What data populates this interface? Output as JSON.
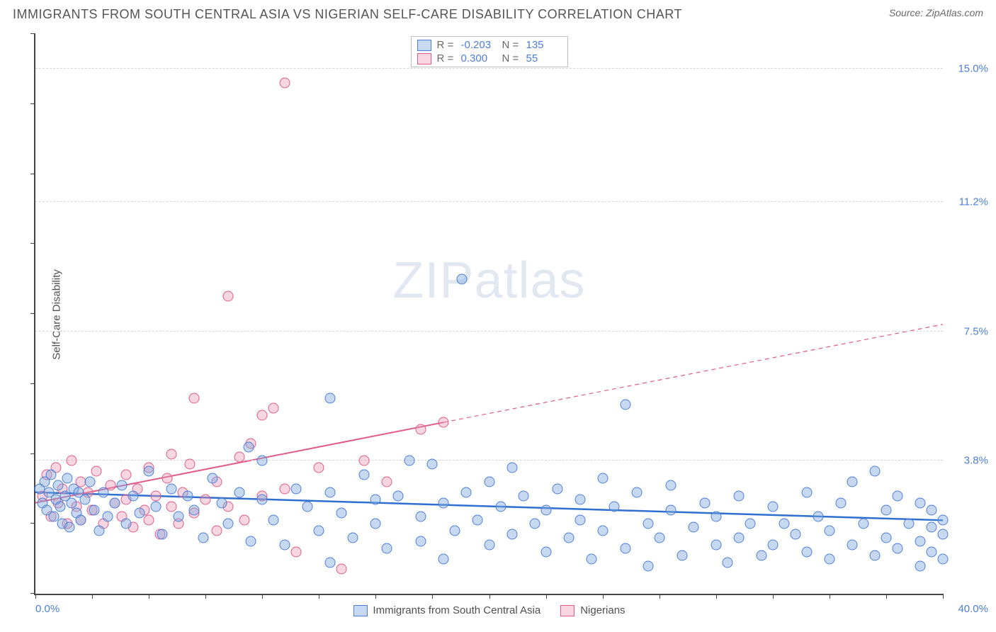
{
  "title": "IMMIGRANTS FROM SOUTH CENTRAL ASIA VS NIGERIAN SELF-CARE DISABILITY CORRELATION CHART",
  "source_label": "Source: ZipAtlas.com",
  "watermark": {
    "bold": "ZIP",
    "light": "atlas"
  },
  "chart": {
    "type": "scatter",
    "background_color": "#ffffff",
    "grid_color": "#d7d7d7",
    "axis_color": "#444444",
    "axis_label_color": "#4d7fd8",
    "y_axis_title": "Self-Care Disability",
    "y_axis_title_color": "#505050",
    "xlim": [
      0,
      40
    ],
    "ylim": [
      0,
      16
    ],
    "x_ticks": [
      0,
      2.5,
      5,
      7.5,
      10,
      12.5,
      15,
      17.5,
      20,
      22.5,
      25,
      27.5,
      30,
      32.5,
      35,
      37.5,
      40
    ],
    "y_ticks": [
      0,
      2,
      4,
      6,
      8,
      10,
      12,
      14,
      16
    ],
    "x_min_label": "0.0%",
    "x_max_label": "40.0%",
    "y_grid": [
      {
        "v": 3.8,
        "label": "3.8%"
      },
      {
        "v": 7.5,
        "label": "7.5%"
      },
      {
        "v": 11.2,
        "label": "11.2%"
      },
      {
        "v": 15.0,
        "label": "15.0%"
      }
    ],
    "marker_radius": 7.5,
    "series": [
      {
        "name": "Immigrants from South Central Asia",
        "short": "sca",
        "fill": "rgba(128,170,225,0.45)",
        "stroke": "#4d7fd8",
        "trend_color": "#2f6fd0",
        "trend_width": 2.5,
        "R": "-0.203",
        "N": "135",
        "trend": {
          "x1": 0,
          "y1": 2.9,
          "x2": 40,
          "y2": 2.1
        },
        "points": [
          [
            0.2,
            3.0
          ],
          [
            0.3,
            2.6
          ],
          [
            0.4,
            3.2
          ],
          [
            0.5,
            2.4
          ],
          [
            0.6,
            2.9
          ],
          [
            0.7,
            3.4
          ],
          [
            0.8,
            2.2
          ],
          [
            0.9,
            2.7
          ],
          [
            1.0,
            3.1
          ],
          [
            1.1,
            2.5
          ],
          [
            1.2,
            2.0
          ],
          [
            1.3,
            2.8
          ],
          [
            1.4,
            3.3
          ],
          [
            1.5,
            1.9
          ],
          [
            1.6,
            2.6
          ],
          [
            1.7,
            3.0
          ],
          [
            1.8,
            2.3
          ],
          [
            1.9,
            2.9
          ],
          [
            2.0,
            2.1
          ],
          [
            2.2,
            2.7
          ],
          [
            2.4,
            3.2
          ],
          [
            2.6,
            2.4
          ],
          [
            2.8,
            1.8
          ],
          [
            3.0,
            2.9
          ],
          [
            3.2,
            2.2
          ],
          [
            3.5,
            2.6
          ],
          [
            3.8,
            3.1
          ],
          [
            4.0,
            2.0
          ],
          [
            4.3,
            2.8
          ],
          [
            4.6,
            2.3
          ],
          [
            5.0,
            3.5
          ],
          [
            5.3,
            2.5
          ],
          [
            5.6,
            1.7
          ],
          [
            6.0,
            3.0
          ],
          [
            6.3,
            2.2
          ],
          [
            6.7,
            2.8
          ],
          [
            7.0,
            2.4
          ],
          [
            7.4,
            1.6
          ],
          [
            7.8,
            3.3
          ],
          [
            8.2,
            2.6
          ],
          [
            8.5,
            2.0
          ],
          [
            9.0,
            2.9
          ],
          [
            9.4,
            4.2
          ],
          [
            9.5,
            1.5
          ],
          [
            10.0,
            2.7
          ],
          [
            10.0,
            3.8
          ],
          [
            10.5,
            2.1
          ],
          [
            11.0,
            1.4
          ],
          [
            11.5,
            3.0
          ],
          [
            12.0,
            2.5
          ],
          [
            12.5,
            1.8
          ],
          [
            13.0,
            2.9
          ],
          [
            13.0,
            5.6
          ],
          [
            13.0,
            0.9
          ],
          [
            13.5,
            2.3
          ],
          [
            14.0,
            1.6
          ],
          [
            14.5,
            3.4
          ],
          [
            15.0,
            2.7
          ],
          [
            15.0,
            2.0
          ],
          [
            15.5,
            1.3
          ],
          [
            16.0,
            2.8
          ],
          [
            16.5,
            3.8
          ],
          [
            17.0,
            2.2
          ],
          [
            17.0,
            1.5
          ],
          [
            17.5,
            3.7
          ],
          [
            18.0,
            2.6
          ],
          [
            18.0,
            1.0
          ],
          [
            18.5,
            1.8
          ],
          [
            18.8,
            9.0
          ],
          [
            19.0,
            2.9
          ],
          [
            19.5,
            2.1
          ],
          [
            20.0,
            1.4
          ],
          [
            20.0,
            3.2
          ],
          [
            20.5,
            2.5
          ],
          [
            21.0,
            1.7
          ],
          [
            21.0,
            3.6
          ],
          [
            21.5,
            2.8
          ],
          [
            22.0,
            2.0
          ],
          [
            22.5,
            1.2
          ],
          [
            22.5,
            2.4
          ],
          [
            23.0,
            3.0
          ],
          [
            23.5,
            1.6
          ],
          [
            24.0,
            2.7
          ],
          [
            24.0,
            2.1
          ],
          [
            24.5,
            1.0
          ],
          [
            25.0,
            3.3
          ],
          [
            25.0,
            1.8
          ],
          [
            25.5,
            2.5
          ],
          [
            26.0,
            1.3
          ],
          [
            26.0,
            5.4
          ],
          [
            26.5,
            2.9
          ],
          [
            27.0,
            2.0
          ],
          [
            27.0,
            0.8
          ],
          [
            27.5,
            1.6
          ],
          [
            28.0,
            2.4
          ],
          [
            28.0,
            3.1
          ],
          [
            28.5,
            1.1
          ],
          [
            29.0,
            1.9
          ],
          [
            29.5,
            2.6
          ],
          [
            30.0,
            1.4
          ],
          [
            30.0,
            2.2
          ],
          [
            30.5,
            0.9
          ],
          [
            31.0,
            2.8
          ],
          [
            31.0,
            1.6
          ],
          [
            31.5,
            2.0
          ],
          [
            32.0,
            1.1
          ],
          [
            32.5,
            2.5
          ],
          [
            32.5,
            1.4
          ],
          [
            33.0,
            2.0
          ],
          [
            33.5,
            1.7
          ],
          [
            34.0,
            2.9
          ],
          [
            34.0,
            1.2
          ],
          [
            34.5,
            2.2
          ],
          [
            35.0,
            1.0
          ],
          [
            35.0,
            1.8
          ],
          [
            35.5,
            2.6
          ],
          [
            36.0,
            1.4
          ],
          [
            36.0,
            3.2
          ],
          [
            36.5,
            2.0
          ],
          [
            37.0,
            1.1
          ],
          [
            37.0,
            3.5
          ],
          [
            37.5,
            2.4
          ],
          [
            37.5,
            1.6
          ],
          [
            38.0,
            2.8
          ],
          [
            38.0,
            1.3
          ],
          [
            38.5,
            2.0
          ],
          [
            39.0,
            2.6
          ],
          [
            39.0,
            1.5
          ],
          [
            39.0,
            0.8
          ],
          [
            39.5,
            1.9
          ],
          [
            39.5,
            2.4
          ],
          [
            39.5,
            1.2
          ],
          [
            40.0,
            2.1
          ],
          [
            40.0,
            1.0
          ],
          [
            40.0,
            1.7
          ]
        ]
      },
      {
        "name": "Nigerians",
        "short": "nig",
        "fill": "rgba(236,150,180,0.40)",
        "stroke": "#e15a8a",
        "trend_color": "#e15a8a",
        "trend_width": 2,
        "R": "0.300",
        "N": "55",
        "trend_solid": {
          "x1": 0,
          "y1": 2.6,
          "x2": 18,
          "y2": 4.9
        },
        "trend_dash": {
          "x1": 18,
          "y1": 4.9,
          "x2": 40,
          "y2": 7.7
        },
        "points": [
          [
            0.3,
            2.8
          ],
          [
            0.5,
            3.4
          ],
          [
            0.7,
            2.2
          ],
          [
            0.9,
            3.6
          ],
          [
            1.0,
            2.6
          ],
          [
            1.2,
            3.0
          ],
          [
            1.4,
            2.0
          ],
          [
            1.6,
            3.8
          ],
          [
            1.8,
            2.5
          ],
          [
            2.0,
            3.2
          ],
          [
            2.0,
            2.1
          ],
          [
            2.3,
            2.9
          ],
          [
            2.5,
            2.4
          ],
          [
            2.7,
            3.5
          ],
          [
            3.0,
            2.0
          ],
          [
            3.3,
            3.1
          ],
          [
            3.5,
            2.6
          ],
          [
            3.8,
            2.2
          ],
          [
            4.0,
            3.4
          ],
          [
            4.0,
            2.7
          ],
          [
            4.3,
            1.9
          ],
          [
            4.5,
            3.0
          ],
          [
            4.8,
            2.4
          ],
          [
            5.0,
            3.6
          ],
          [
            5.0,
            2.1
          ],
          [
            5.3,
            2.8
          ],
          [
            5.5,
            1.7
          ],
          [
            5.8,
            3.3
          ],
          [
            6.0,
            2.5
          ],
          [
            6.0,
            4.0
          ],
          [
            6.3,
            2.0
          ],
          [
            6.5,
            2.9
          ],
          [
            6.8,
            3.7
          ],
          [
            7.0,
            2.3
          ],
          [
            7.0,
            5.6
          ],
          [
            7.5,
            2.7
          ],
          [
            8.0,
            3.2
          ],
          [
            8.0,
            1.8
          ],
          [
            8.5,
            8.5
          ],
          [
            8.5,
            2.5
          ],
          [
            9.0,
            3.9
          ],
          [
            9.2,
            2.1
          ],
          [
            9.5,
            4.3
          ],
          [
            10.0,
            2.8
          ],
          [
            10.0,
            5.1
          ],
          [
            10.5,
            5.3
          ],
          [
            11.0,
            3.0
          ],
          [
            11.0,
            14.6
          ],
          [
            11.5,
            1.2
          ],
          [
            12.5,
            3.6
          ],
          [
            13.5,
            0.7
          ],
          [
            14.5,
            3.8
          ],
          [
            15.5,
            3.2
          ],
          [
            17.0,
            4.7
          ],
          [
            18.0,
            4.9
          ]
        ]
      }
    ]
  },
  "colors": {
    "title": "#555555",
    "source": "#6a6a6a",
    "legend_label": "#6a6a6a",
    "legend_val": "#4d7fd8"
  }
}
